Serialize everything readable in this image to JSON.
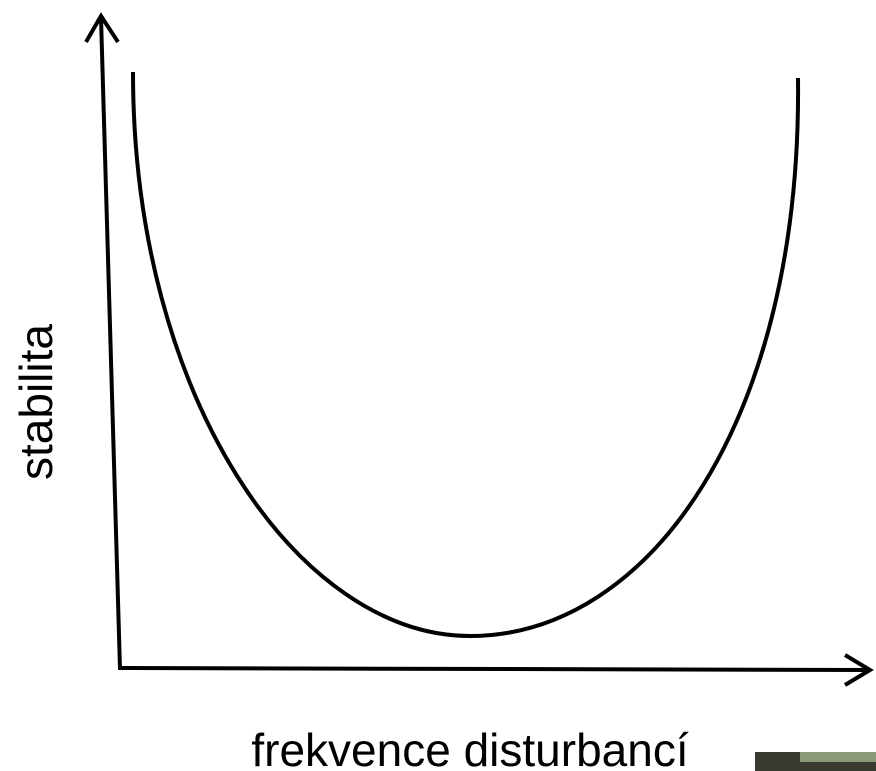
{
  "diagram": {
    "x_axis_label": "frekvence disturbancí",
    "y_axis_label": "stabilita"
  }
}
